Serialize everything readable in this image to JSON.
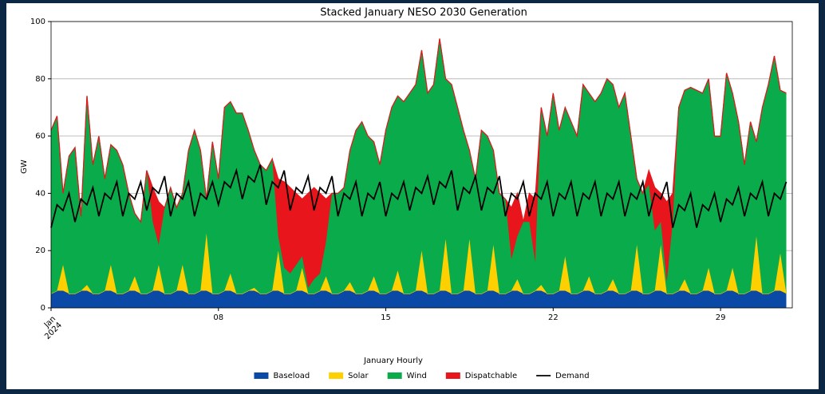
{
  "chart_data": {
    "type": "area",
    "stacked": true,
    "title": "Stacked January NESO 2030 Generation",
    "xlabel": "January Hourly",
    "ylabel": "GW",
    "xlim": [
      1,
      32
    ],
    "ylim": [
      0,
      100
    ],
    "yticks": [
      0,
      20,
      40,
      60,
      80,
      100
    ],
    "xticks": [
      {
        "value": 1,
        "label": "Jan\n2024"
      },
      {
        "value": 8,
        "label": "08"
      },
      {
        "value": 15,
        "label": "15"
      },
      {
        "value": 22,
        "label": "22"
      },
      {
        "value": 29,
        "label": "29"
      }
    ],
    "grid": "y",
    "legend": "bottom",
    "x": [
      1,
      1.25,
      1.5,
      1.75,
      2,
      2.25,
      2.5,
      2.75,
      3,
      3.25,
      3.5,
      3.75,
      4,
      4.25,
      4.5,
      4.75,
      5,
      5.25,
      5.5,
      5.75,
      6,
      6.25,
      6.5,
      6.75,
      7,
      7.25,
      7.5,
      7.75,
      8,
      8.25,
      8.5,
      8.75,
      9,
      9.25,
      9.5,
      9.75,
      10,
      10.25,
      10.5,
      10.75,
      11,
      11.25,
      11.5,
      11.75,
      12,
      12.25,
      12.5,
      12.75,
      13,
      13.25,
      13.5,
      13.75,
      14,
      14.25,
      14.5,
      14.75,
      15,
      15.25,
      15.5,
      15.75,
      16,
      16.25,
      16.5,
      16.75,
      17,
      17.25,
      17.5,
      17.75,
      18,
      18.25,
      18.5,
      18.75,
      19,
      19.25,
      19.5,
      19.75,
      20,
      20.25,
      20.5,
      20.75,
      21,
      21.25,
      21.5,
      21.75,
      22,
      22.25,
      22.5,
      22.75,
      23,
      23.25,
      23.5,
      23.75,
      24,
      24.25,
      24.5,
      24.75,
      25,
      25.25,
      25.5,
      25.75,
      26,
      26.25,
      26.5,
      26.75,
      27,
      27.25,
      27.5,
      27.75,
      28,
      28.25,
      28.5,
      28.75,
      29,
      29.25,
      29.5,
      29.75,
      30,
      30.25,
      30.5,
      30.75,
      31,
      31.25,
      31.5,
      31.75
    ],
    "series": [
      {
        "name": "Baseload",
        "color": "#0a4aa6",
        "values": [
          5,
          6,
          6,
          5,
          5,
          6,
          6,
          5,
          5,
          6,
          6,
          5,
          5,
          6,
          6,
          5,
          5,
          6,
          6,
          5,
          5,
          6,
          6,
          5,
          5,
          6,
          6,
          5,
          5,
          6,
          6,
          5,
          5,
          6,
          6,
          5,
          5,
          6,
          6,
          5,
          5,
          6,
          6,
          5,
          5,
          6,
          6,
          5,
          5,
          6,
          6,
          5,
          5,
          6,
          6,
          5,
          5,
          6,
          6,
          5,
          5,
          6,
          6,
          5,
          5,
          6,
          6,
          5,
          5,
          6,
          6,
          5,
          5,
          6,
          6,
          5,
          5,
          6,
          6,
          5,
          5,
          6,
          6,
          5,
          5,
          6,
          6,
          5,
          5,
          6,
          6,
          5,
          5,
          6,
          6,
          5,
          5,
          6,
          6,
          5,
          5,
          6,
          6,
          5,
          5,
          6,
          6,
          5,
          5,
          6,
          6,
          5,
          5,
          6,
          6,
          5,
          5,
          6,
          6,
          5,
          5,
          6,
          6,
          5
        ]
      },
      {
        "name": "Solar",
        "color": "#ffd000",
        "values": [
          0,
          0,
          9,
          0,
          0,
          0,
          2,
          0,
          0,
          0,
          9,
          0,
          0,
          0,
          5,
          0,
          0,
          0,
          9,
          0,
          0,
          0,
          9,
          0,
          0,
          0,
          20,
          0,
          0,
          0,
          6,
          0,
          0,
          0,
          1,
          0,
          0,
          0,
          14,
          0,
          0,
          0,
          8,
          0,
          0,
          0,
          5,
          0,
          0,
          0,
          3,
          0,
          0,
          0,
          5,
          0,
          0,
          0,
          7,
          0,
          0,
          0,
          14,
          0,
          0,
          0,
          18,
          0,
          0,
          0,
          18,
          0,
          0,
          0,
          16,
          0,
          0,
          0,
          4,
          0,
          0,
          0,
          2,
          0,
          0,
          0,
          12,
          0,
          0,
          0,
          5,
          0,
          0,
          0,
          4,
          0,
          0,
          0,
          16,
          0,
          0,
          0,
          16,
          0,
          0,
          0,
          4,
          0,
          0,
          0,
          8,
          0,
          0,
          0,
          8,
          0,
          0,
          0,
          19,
          0,
          0,
          0,
          13,
          0
        ]
      },
      {
        "name": "Wind",
        "color": "#0aab4a",
        "values": [
          57,
          61,
          25,
          48,
          51,
          26,
          66,
          45,
          55,
          39,
          42,
          50,
          45,
          34,
          22,
          25,
          43,
          24,
          7,
          30,
          37,
          29,
          25,
          50,
          57,
          49,
          12,
          53,
          40,
          64,
          60,
          63,
          63,
          56,
          48,
          45,
          43,
          46,
          5,
          9,
          7,
          9,
          4,
          2,
          5,
          6,
          12,
          35,
          35,
          36,
          46,
          57,
          60,
          54,
          47,
          45,
          57,
          64,
          61,
          67,
          70,
          72,
          70,
          70,
          73,
          88,
          56,
          73,
          65,
          56,
          31,
          40,
          57,
          54,
          33,
          35,
          33,
          11,
          15,
          25,
          25,
          10,
          62,
          55,
          70,
          56,
          52,
          60,
          55,
          72,
          64,
          67,
          70,
          74,
          68,
          65,
          70,
          54,
          23,
          35,
          38,
          21,
          8,
          4,
          25,
          64,
          66,
          72,
          71,
          69,
          66,
          55,
          55,
          76,
          61,
          60,
          45,
          59,
          33,
          65,
          73,
          82,
          57,
          70
        ]
      },
      {
        "name": "Dispatchable",
        "color": "#e8151c",
        "values": [
          0,
          0,
          0,
          0,
          0,
          0,
          0,
          0,
          0,
          0,
          0,
          0,
          0,
          0,
          0,
          0,
          0,
          12,
          15,
          0,
          0,
          0,
          0,
          0,
          0,
          0,
          0,
          0,
          0,
          0,
          0,
          0,
          0,
          0,
          0,
          0,
          0,
          0,
          20,
          30,
          30,
          25,
          20,
          33,
          32,
          28,
          15,
          0,
          0,
          0,
          0,
          0,
          0,
          0,
          0,
          0,
          0,
          0,
          0,
          0,
          0,
          0,
          0,
          0,
          0,
          0,
          0,
          0,
          0,
          0,
          0,
          0,
          0,
          0,
          0,
          0,
          0,
          18,
          15,
          0,
          10,
          22,
          0,
          0,
          0,
          0,
          0,
          0,
          0,
          0,
          0,
          0,
          0,
          0,
          0,
          0,
          0,
          0,
          0,
          0,
          5,
          15,
          10,
          28,
          10,
          0,
          0,
          0,
          0,
          0,
          0,
          0,
          0,
          0,
          0,
          0,
          0,
          0,
          0,
          0,
          0,
          0,
          0,
          0
        ]
      },
      {
        "name": "Demand",
        "color": "#000000",
        "type": "line",
        "values": [
          28,
          36,
          34,
          40,
          30,
          38,
          36,
          42,
          32,
          40,
          38,
          44,
          32,
          40,
          38,
          44,
          34,
          42,
          40,
          46,
          32,
          40,
          38,
          44,
          32,
          40,
          38,
          44,
          36,
          44,
          42,
          48,
          38,
          46,
          44,
          50,
          36,
          44,
          42,
          48,
          34,
          42,
          40,
          46,
          34,
          42,
          40,
          46,
          32,
          40,
          38,
          44,
          32,
          40,
          38,
          44,
          32,
          40,
          38,
          44,
          34,
          42,
          40,
          46,
          36,
          44,
          42,
          48,
          34,
          42,
          40,
          46,
          34,
          42,
          40,
          46,
          32,
          40,
          38,
          44,
          32,
          40,
          38,
          44,
          32,
          40,
          38,
          44,
          32,
          40,
          38,
          44,
          32,
          40,
          38,
          44,
          32,
          40,
          38,
          44,
          32,
          40,
          38,
          44,
          28,
          36,
          34,
          40,
          28,
          36,
          34,
          40,
          30,
          38,
          36,
          42,
          32,
          40,
          38,
          44,
          32,
          40,
          38,
          44
        ]
      }
    ]
  }
}
